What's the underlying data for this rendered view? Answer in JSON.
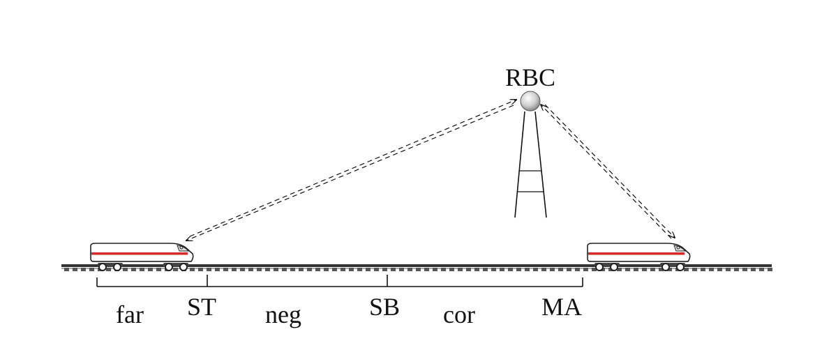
{
  "tower": {
    "label": "RBC"
  },
  "segments": {
    "far": "far",
    "st": "ST",
    "neg": "neg",
    "sb": "SB",
    "cor": "cor",
    "ma": "MA"
  },
  "colors": {
    "ink": "#111111",
    "train_stripe": "#d62828",
    "train_body": "#ffffff",
    "rail": "#333333"
  },
  "icons": {
    "train_left": "train-icon",
    "train_right": "train-icon",
    "tower": "radio-tower-icon"
  }
}
